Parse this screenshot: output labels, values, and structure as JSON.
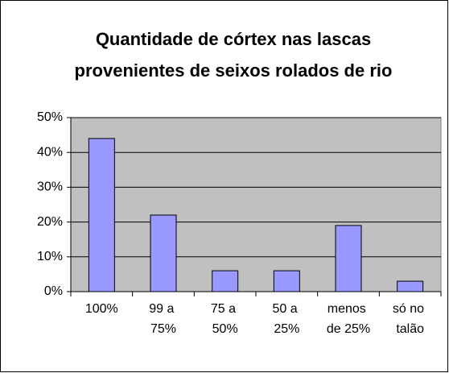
{
  "chart_data": {
    "type": "bar",
    "title": [
      "Quantidade de córtex nas lascas",
      "provenientes de seixos rolados de rio"
    ],
    "categories": [
      "100%",
      "99 a 75%",
      "75 a 50%",
      "50 a 25%",
      "menos de 25%",
      "só no talão"
    ],
    "values": [
      44,
      22,
      6,
      6,
      19,
      3
    ],
    "color": "#9999ff",
    "ylim": [
      0,
      50
    ],
    "yticks": [
      {
        "value": 0,
        "label": "0%"
      },
      {
        "value": 10,
        "label": "10%"
      },
      {
        "value": 20,
        "label": "20%"
      },
      {
        "value": 30,
        "label": "30%"
      },
      {
        "value": 40,
        "label": "40%"
      },
      {
        "value": 50,
        "label": "50%"
      }
    ],
    "grid": true
  }
}
